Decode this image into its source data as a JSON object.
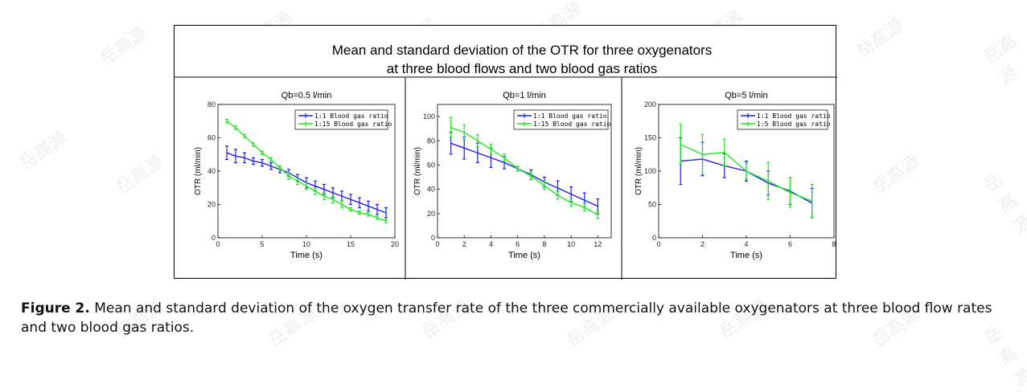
{
  "figure_title_line1": "Mean and standard deviation of the OTR for three oxygenators",
  "figure_title_line2": "at three blood flows and two blood gas ratios",
  "caption_label": "Figure 2.",
  "caption_text": "Mean and standard deviation of the oxygen transfer rate of the three commercially available oxygenators at three blood flow rates and two blood gas ratios.",
  "watermark": "岳高源",
  "colors": {
    "series_blue": "#1f1fe6",
    "series_green": "#22e622"
  },
  "chart_data": [
    {
      "type": "line",
      "title": "Qb=0.5 l/min",
      "xlabel": "Time (s)",
      "ylabel": "OTR (ml/min)",
      "xlim": [
        0,
        20
      ],
      "ylim": [
        0,
        80
      ],
      "xticks": [
        0,
        5,
        10,
        15,
        20
      ],
      "yticks": [
        0,
        20,
        40,
        60,
        80
      ],
      "series": [
        {
          "name": "1:1 Blood gas ratio",
          "color": "#1f1fe6",
          "x": [
            1,
            2,
            3,
            4,
            5,
            6,
            7,
            8,
            9,
            10,
            11,
            12,
            13,
            14,
            15,
            16,
            17,
            18,
            19
          ],
          "y": [
            51,
            49,
            48,
            46,
            45,
            43,
            41,
            39,
            36,
            33,
            31,
            29,
            27,
            25,
            23,
            21,
            19,
            17,
            15
          ],
          "err": [
            4,
            4,
            3,
            2,
            2,
            2,
            2,
            2,
            2,
            3,
            3,
            3,
            3,
            3,
            3,
            3,
            3,
            3,
            3
          ]
        },
        {
          "name": "1:15 Blood gas ratio",
          "color": "#22e622",
          "x": [
            1,
            2,
            3,
            4,
            5,
            6,
            7,
            8,
            9,
            10,
            11,
            12,
            13,
            14,
            15,
            16,
            17,
            18,
            19
          ],
          "y": [
            70,
            66,
            61,
            56,
            51,
            47,
            42,
            37,
            34,
            31,
            28,
            25,
            23,
            20,
            17,
            15,
            14,
            12,
            10
          ],
          "err": [
            1,
            1,
            1,
            1,
            1,
            1,
            1,
            2,
            2,
            2,
            2,
            2,
            2,
            2,
            1,
            1,
            1,
            1,
            1
          ]
        }
      ]
    },
    {
      "type": "line",
      "title": "Qb=1 l/min",
      "xlabel": "Time (s)",
      "ylabel": "OTR (ml/min)",
      "xlim": [
        0,
        13
      ],
      "ylim": [
        0,
        110
      ],
      "xticks": [
        0,
        2,
        4,
        6,
        8,
        10,
        12
      ],
      "yticks": [
        0,
        20,
        40,
        60,
        80,
        100
      ],
      "series": [
        {
          "name": "1:1 Blood gas ratio",
          "color": "#1f1fe6",
          "x": [
            1,
            2,
            3,
            4,
            5,
            6,
            7,
            8,
            9,
            10,
            11,
            12
          ],
          "y": [
            78,
            74,
            70,
            66,
            62,
            57,
            52,
            46,
            41,
            36,
            31,
            26
          ],
          "err": [
            9,
            9,
            8,
            8,
            5,
            2,
            4,
            4,
            6,
            6,
            6,
            6
          ]
        },
        {
          "name": "1:15 Blood gas ratio",
          "color": "#22e622",
          "x": [
            1,
            2,
            3,
            4,
            5,
            6,
            7,
            8,
            9,
            10,
            11,
            12
          ],
          "y": [
            91,
            87,
            80,
            73,
            66,
            57,
            51,
            43,
            35,
            29,
            25,
            19
          ],
          "err": [
            8,
            6,
            5,
            4,
            3,
            2,
            3,
            3,
            3,
            3,
            3,
            3
          ]
        }
      ]
    },
    {
      "type": "line",
      "title": "Qb=5 l/min",
      "xlabel": "Time (s)",
      "ylabel": "OTR (ml/min)",
      "xlim": [
        0,
        8
      ],
      "ylim": [
        0,
        200
      ],
      "xticks": [
        0,
        2,
        4,
        6,
        8
      ],
      "yticks": [
        0,
        50,
        100,
        150,
        200
      ],
      "series": [
        {
          "name": "1:1 Blood gas ratio",
          "color": "#1f1fe6",
          "x": [
            1,
            2,
            3,
            4,
            5,
            6,
            7
          ],
          "y": [
            115,
            118,
            108,
            100,
            82,
            70,
            52
          ],
          "err": [
            35,
            25,
            18,
            15,
            18,
            20,
            22
          ]
        },
        {
          "name": "1:5 Blood gas ratio",
          "color": "#22e622",
          "x": [
            1,
            2,
            3,
            4,
            5,
            6,
            7
          ],
          "y": [
            140,
            125,
            128,
            100,
            85,
            68,
            55
          ],
          "err": [
            30,
            30,
            20,
            12,
            28,
            22,
            25
          ]
        }
      ]
    }
  ]
}
